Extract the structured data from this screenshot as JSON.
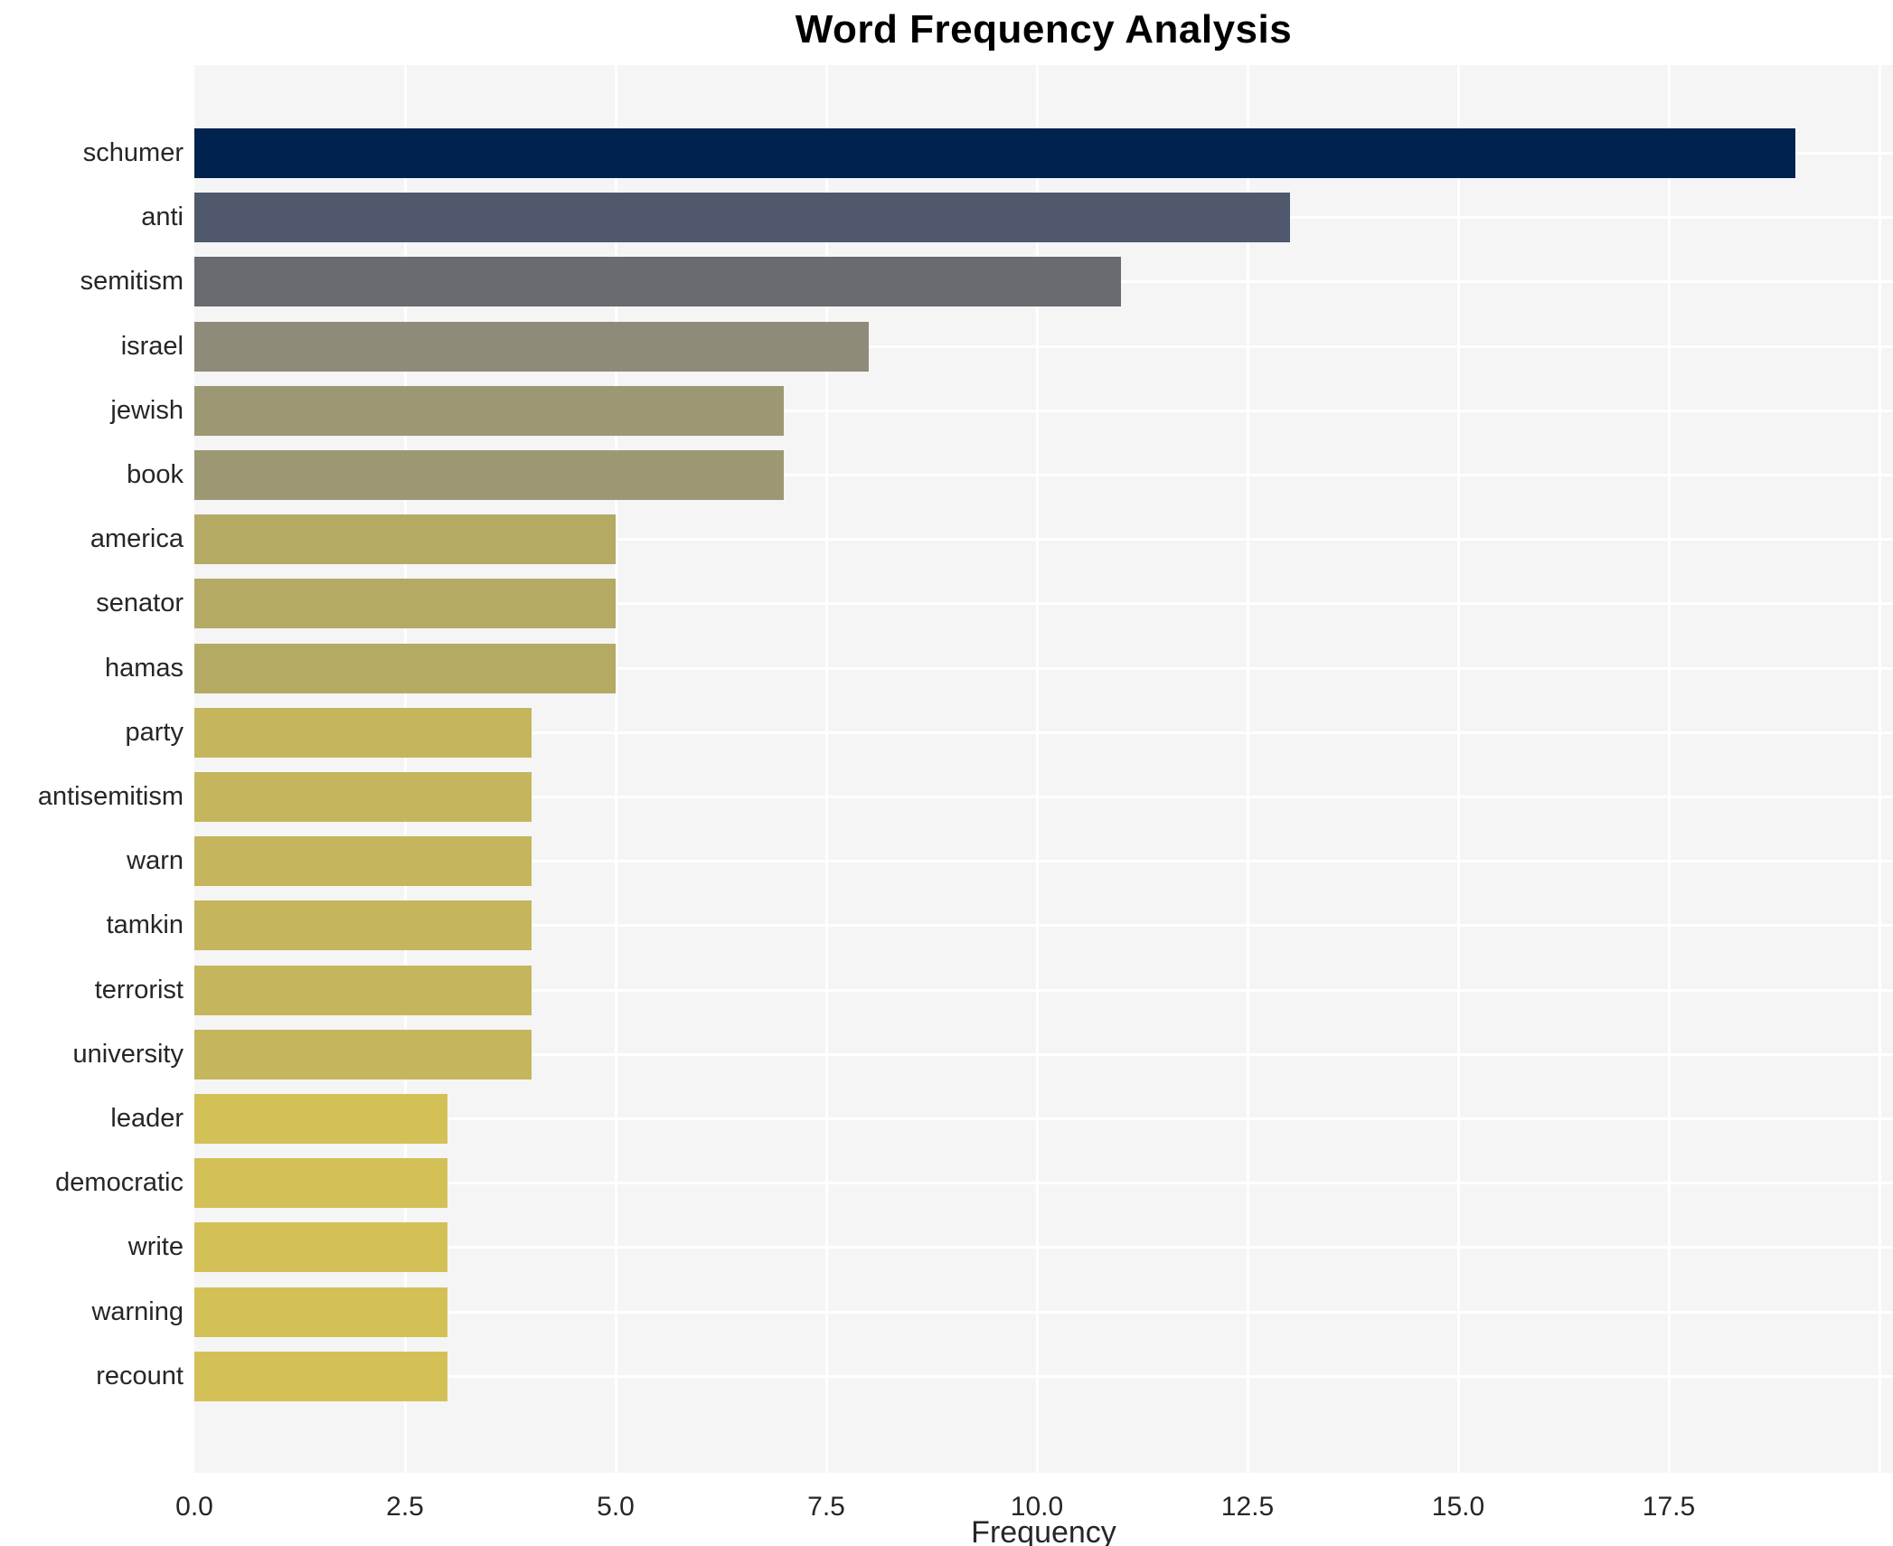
{
  "title": "Word Frequency Analysis",
  "xlabel": "Frequency",
  "colors": {
    "plot_background": "#f5f5f6",
    "page_background": "#ffffff",
    "gridline": "#ffffff",
    "text": "#262626",
    "title_text": "#000000"
  },
  "chart_data": {
    "type": "bar",
    "orientation": "horizontal",
    "title": "Word Frequency Analysis",
    "xlabel": "Frequency",
    "ylabel": "",
    "categories": [
      "schumer",
      "anti",
      "semitism",
      "israel",
      "jewish",
      "book",
      "america",
      "senator",
      "hamas",
      "party",
      "antisemitism",
      "warn",
      "tamkin",
      "terrorist",
      "university",
      "leader",
      "democratic",
      "write",
      "warning",
      "recount"
    ],
    "values": [
      19,
      13,
      11,
      8,
      7,
      7,
      5,
      5,
      5,
      4,
      4,
      4,
      4,
      4,
      4,
      3,
      3,
      3,
      3,
      3
    ],
    "bar_colors": [
      "#00224e",
      "#4f586c",
      "#6a6b71",
      "#8f8b7a",
      "#9c9874",
      "#9c9874",
      "#b4aa64",
      "#b4aa64",
      "#b4aa64",
      "#c5b55d",
      "#c5b55d",
      "#c5b55d",
      "#c5b55d",
      "#c5b55d",
      "#c5b55d",
      "#d3c157",
      "#d3c157",
      "#d3c157",
      "#d3c157",
      "#d3c157"
    ],
    "xlim": [
      0.0,
      20.16
    ],
    "xticks": [
      0.0,
      2.5,
      5.0,
      7.5,
      10.0,
      12.5,
      15.0,
      17.5
    ],
    "xtick_labels": [
      "0.0",
      "2.5",
      "5.0",
      "7.5",
      "10.0",
      "12.5",
      "15.0",
      "17.5"
    ],
    "grid": true,
    "legend": false
  }
}
